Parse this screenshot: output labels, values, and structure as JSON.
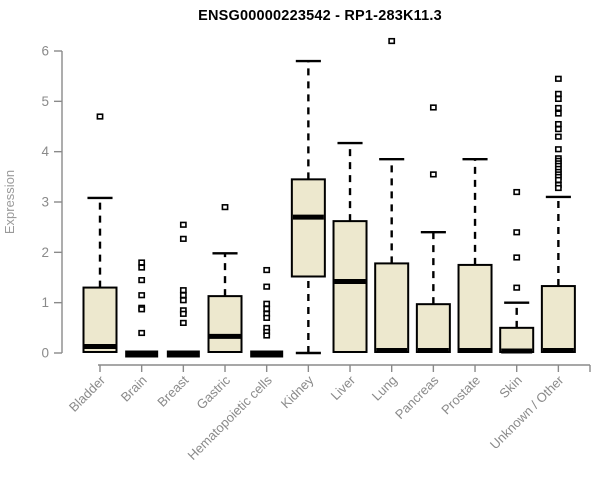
{
  "chart_data": {
    "type": "boxplot",
    "title": "ENSG00000223542 - RP1-283K11.3",
    "ylabel": "Expression",
    "ylim": [
      0,
      6
    ],
    "yticks": [
      0,
      1,
      2,
      3,
      4,
      5,
      6
    ],
    "grid": false,
    "legend": "none",
    "categories": [
      "Bladder",
      "Brain",
      "Breast",
      "Gastric",
      "Hematopoietic cells",
      "Kidney",
      "Liver",
      "Lung",
      "Pancreas",
      "Prostate",
      "Skin",
      "Unknown / Other"
    ],
    "series": [
      {
        "name": "Bladder",
        "collapsed": false,
        "low": 0,
        "q1": 0.02,
        "median": 0.13,
        "q3": 1.3,
        "high": 3.08,
        "outliers": [
          4.7
        ]
      },
      {
        "name": "Brain",
        "collapsed": true,
        "low": 0,
        "q1": 0,
        "median": 0.02,
        "q3": 0.05,
        "high": 0.05,
        "outliers": [
          1.8,
          1.7,
          1.45,
          1.15,
          0.9,
          0.87,
          0.4
        ]
      },
      {
        "name": "Breast",
        "collapsed": true,
        "low": 0,
        "q1": 0,
        "median": 0.02,
        "q3": 0.05,
        "high": 0.05,
        "outliers": [
          2.55,
          2.27,
          1.25,
          1.15,
          1.05,
          0.85,
          0.78,
          0.6
        ]
      },
      {
        "name": "Gastric",
        "collapsed": false,
        "low": 0,
        "q1": 0.02,
        "median": 0.33,
        "q3": 1.13,
        "high": 1.98,
        "outliers": [
          2.9
        ]
      },
      {
        "name": "Hematopoietic cells",
        "collapsed": true,
        "low": 0,
        "q1": 0,
        "median": 0.02,
        "q3": 0.05,
        "high": 0.05,
        "outliers": [
          1.65,
          1.32,
          0.98,
          0.88,
          0.78,
          0.7,
          0.5,
          0.42,
          0.35
        ]
      },
      {
        "name": "Kidney",
        "collapsed": false,
        "low": 0,
        "q1": 1.52,
        "median": 2.7,
        "q3": 3.45,
        "high": 5.8,
        "outliers": []
      },
      {
        "name": "Liver",
        "collapsed": false,
        "low": 0,
        "q1": 0.02,
        "median": 1.42,
        "q3": 2.62,
        "high": 4.17,
        "outliers": []
      },
      {
        "name": "Lung",
        "collapsed": false,
        "low": 0,
        "q1": 0.02,
        "median": 0.05,
        "q3": 1.78,
        "high": 3.85,
        "outliers": [
          6.2
        ]
      },
      {
        "name": "Pancreas",
        "collapsed": false,
        "low": 0,
        "q1": 0.02,
        "median": 0.05,
        "q3": 0.97,
        "high": 2.4,
        "outliers": [
          4.88,
          3.55
        ]
      },
      {
        "name": "Prostate",
        "collapsed": false,
        "low": 0,
        "q1": 0.02,
        "median": 0.05,
        "q3": 1.75,
        "high": 3.85,
        "outliers": []
      },
      {
        "name": "Skin",
        "collapsed": false,
        "low": 0,
        "q1": 0.02,
        "median": 0.04,
        "q3": 0.5,
        "high": 1.0,
        "outliers": [
          3.2,
          2.4,
          1.9,
          1.3
        ]
      },
      {
        "name": "Unknown / Other",
        "collapsed": false,
        "low": 0,
        "q1": 0.02,
        "median": 0.05,
        "q3": 1.33,
        "high": 3.1,
        "outliers": [
          5.45,
          5.15,
          5.05,
          4.87,
          4.76,
          4.55,
          4.45,
          4.3,
          4.05,
          3.87,
          3.82,
          3.77,
          3.72,
          3.66,
          3.6,
          3.55,
          3.5,
          3.44,
          3.34,
          3.28
        ]
      }
    ],
    "colors": {
      "box_fill": "#EDE8CE",
      "box_stroke": "#000000",
      "median": "#000000",
      "whisker": "#000000",
      "outlier_fill": "#FFFFFF",
      "outlier_stroke": "#000000",
      "axis_line": "#8A8A8A",
      "tick_text": "#8A8A8A",
      "axis_label_text": "#9A9A9A",
      "title_text": "#000000",
      "background": "#FFFFFF"
    }
  }
}
